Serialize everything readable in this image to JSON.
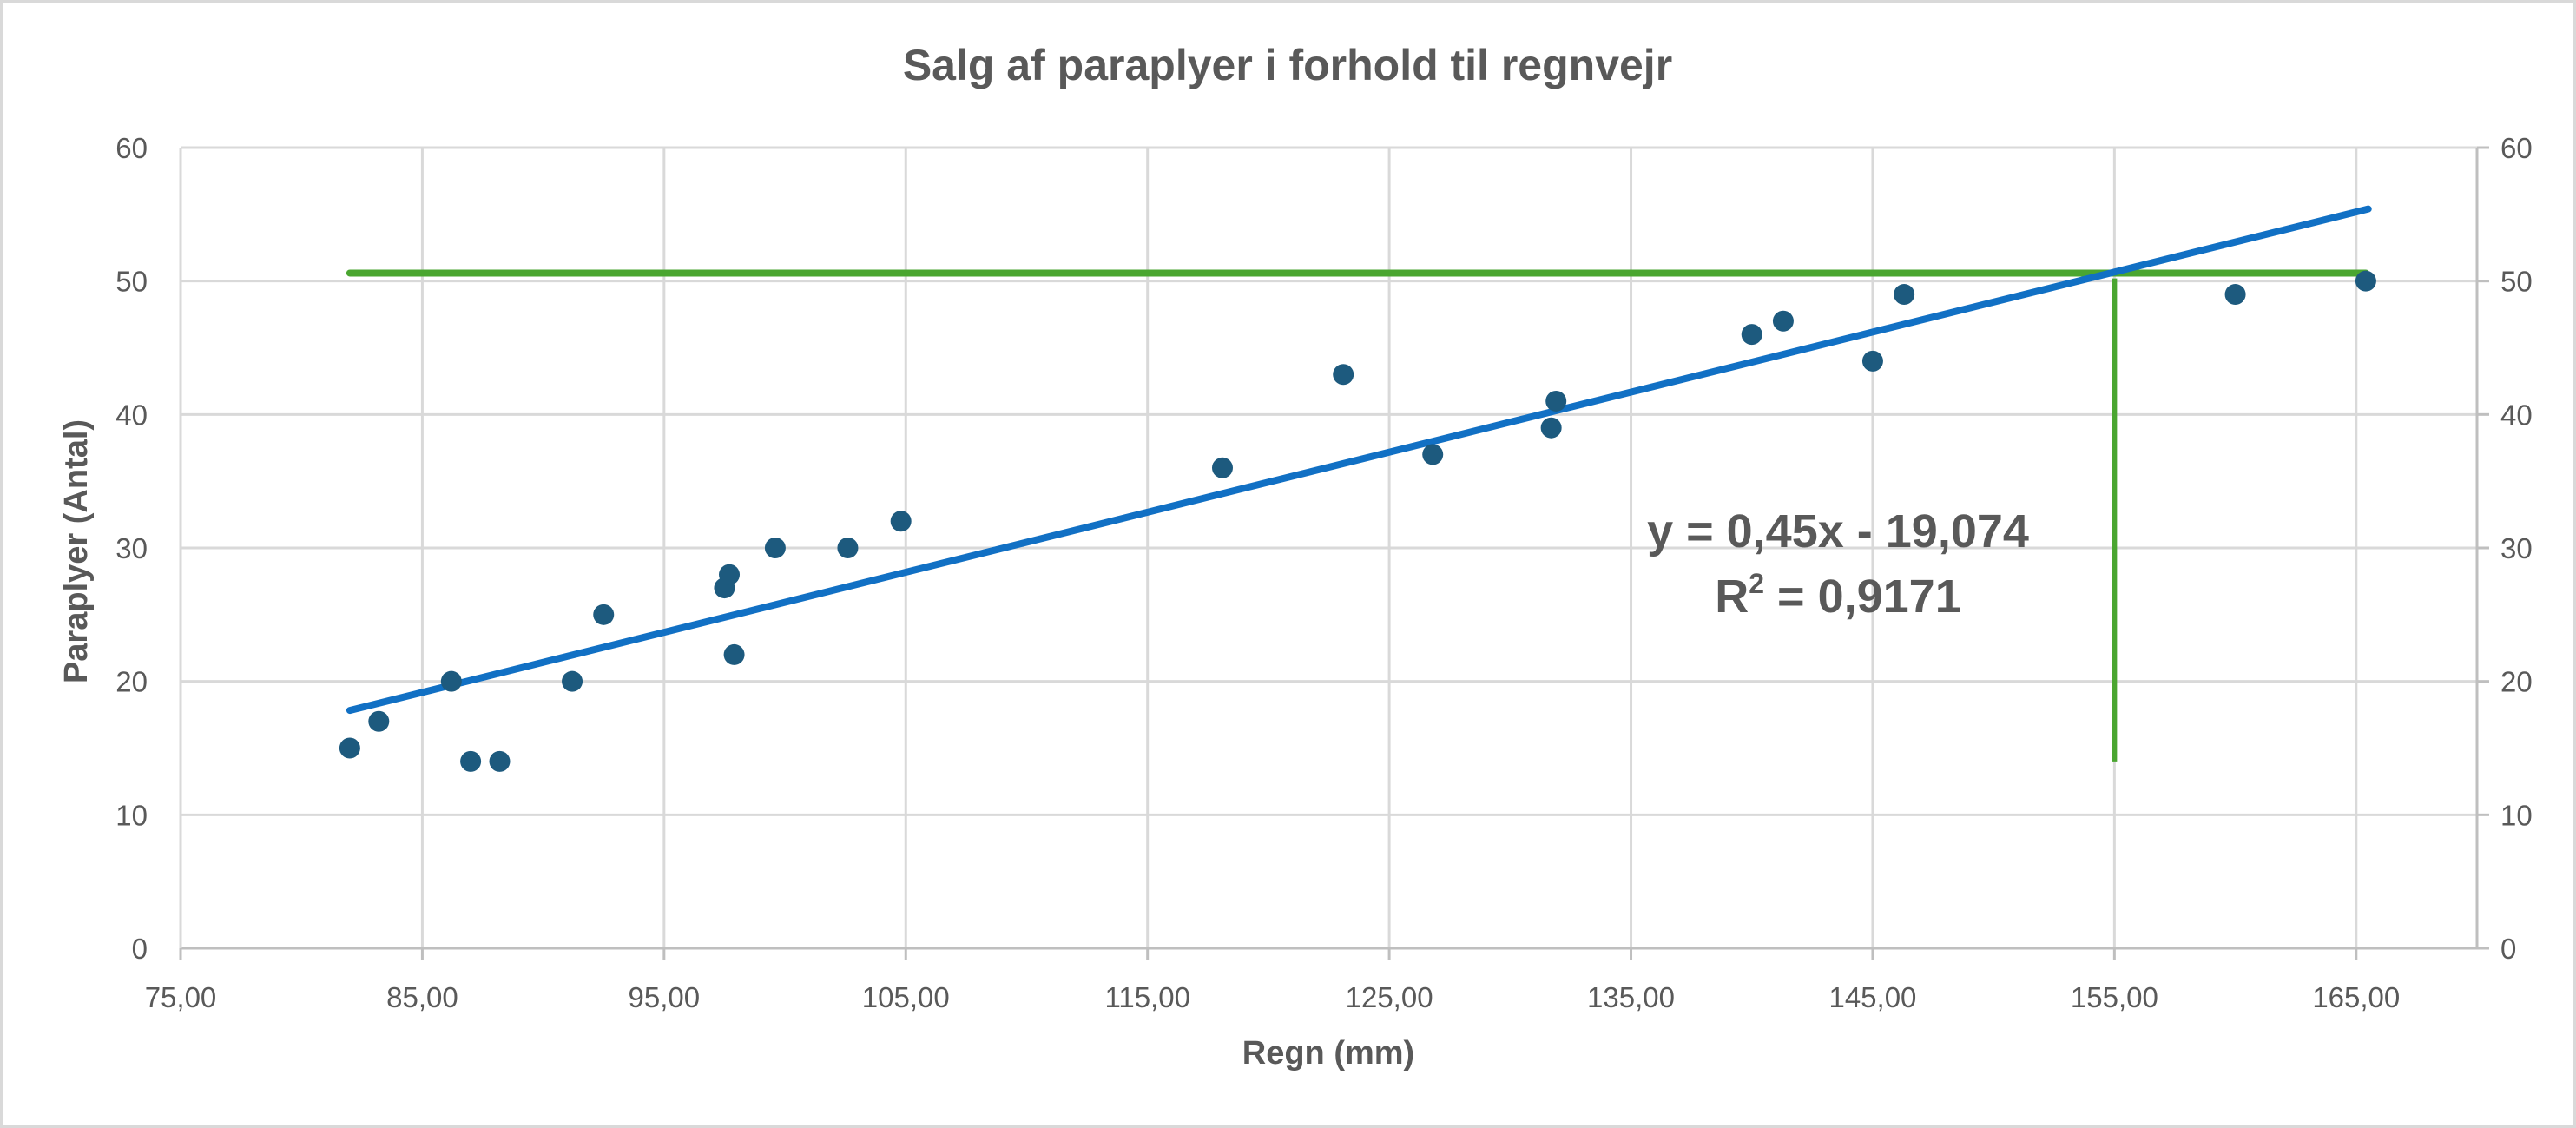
{
  "chart_data": {
    "type": "scatter",
    "title": "Salg af paraplyer i forhold til regnvejr",
    "xlabel": "Regn (mm)",
    "ylabel": "Paraplyer (Antal)",
    "xlim": [
      75,
      170
    ],
    "ylim": [
      0,
      60
    ],
    "x_ticks": [
      75,
      85,
      95,
      105,
      115,
      125,
      135,
      145,
      155,
      165
    ],
    "x_tick_labels": [
      "75,00",
      "85,00",
      "95,00",
      "105,00",
      "115,00",
      "125,00",
      "135,00",
      "145,00",
      "155,00",
      "165,00"
    ],
    "y_ticks": [
      0,
      10,
      20,
      30,
      40,
      50,
      60
    ],
    "y_tick_labels": [
      "0",
      "10",
      "20",
      "30",
      "40",
      "50",
      "60"
    ],
    "grid": true,
    "secondary_y_axis": true,
    "series": [
      {
        "type": "scatter",
        "color": "#1d5a7e",
        "points": [
          [
            82.0,
            15
          ],
          [
            83.2,
            17
          ],
          [
            86.2,
            20
          ],
          [
            87.0,
            14
          ],
          [
            88.2,
            14
          ],
          [
            91.2,
            20
          ],
          [
            92.5,
            25
          ],
          [
            97.5,
            27
          ],
          [
            97.7,
            28
          ],
          [
            97.9,
            22
          ],
          [
            99.6,
            30
          ],
          [
            102.6,
            30
          ],
          [
            104.8,
            32
          ],
          [
            118.1,
            36
          ],
          [
            123.1,
            43
          ],
          [
            126.8,
            37
          ],
          [
            131.7,
            39
          ],
          [
            131.9,
            41
          ],
          [
            140.0,
            46
          ],
          [
            141.3,
            47
          ],
          [
            145.0,
            44
          ],
          [
            146.3,
            49
          ],
          [
            160.0,
            49
          ],
          [
            165.4,
            50
          ]
        ]
      }
    ],
    "trendline": {
      "type": "linear",
      "slope": 0.45,
      "intercept": -19.074,
      "x_range": [
        82.0,
        165.5
      ],
      "color": "#1170c4",
      "equation_line1": "y = 0,45x - 19,074",
      "equation_r_prefix": "R",
      "equation_r_sup": "2",
      "equation_r_suffix": " = 0,9171"
    },
    "reference_lines": {
      "color": "#4aa630",
      "horizontal": {
        "y": 50.6,
        "x_from": 82.0,
        "x_to": 165.4
      },
      "vertical": {
        "x": 155.0,
        "y_from": 14,
        "y_to": 50.2
      }
    }
  }
}
